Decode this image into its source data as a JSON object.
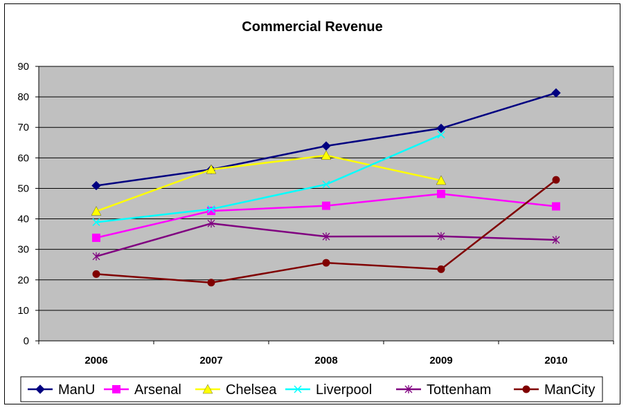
{
  "chart_data": {
    "type": "line",
    "title": "Commercial Revenue",
    "xlabel": "",
    "ylabel": "",
    "categories": [
      "2006",
      "2007",
      "2008",
      "2009",
      "2010"
    ],
    "ylim": [
      0,
      90
    ],
    "yticks": [
      0,
      10,
      20,
      30,
      40,
      50,
      60,
      70,
      80,
      90
    ],
    "grid": true,
    "plot_background": "#C0C0C0",
    "legend_position": "bottom",
    "series": [
      {
        "name": "ManU",
        "values": [
          50.9,
          56.2,
          63.9,
          69.7,
          81.3
        ],
        "color": "#000080",
        "marker": "diamond"
      },
      {
        "name": "Arsenal",
        "values": [
          33.8,
          42.6,
          44.3,
          48.2,
          44.1
        ],
        "color": "#FF00FF",
        "marker": "square"
      },
      {
        "name": "Chelsea",
        "values": [
          42.5,
          56.2,
          60.8,
          52.6,
          null
        ],
        "color": "#FFFF00",
        "marker": "triangle"
      },
      {
        "name": "Liverpool",
        "values": [
          38.9,
          43.2,
          51.3,
          67.6,
          null
        ],
        "color": "#00FFFF",
        "marker": "x"
      },
      {
        "name": "Tottenham",
        "values": [
          27.7,
          38.5,
          34.2,
          34.3,
          33.1
        ],
        "color": "#800080",
        "marker": "star"
      },
      {
        "name": "ManCity",
        "values": [
          21.9,
          19.1,
          25.6,
          23.5,
          52.8
        ],
        "color": "#800000",
        "marker": "circle"
      }
    ]
  }
}
